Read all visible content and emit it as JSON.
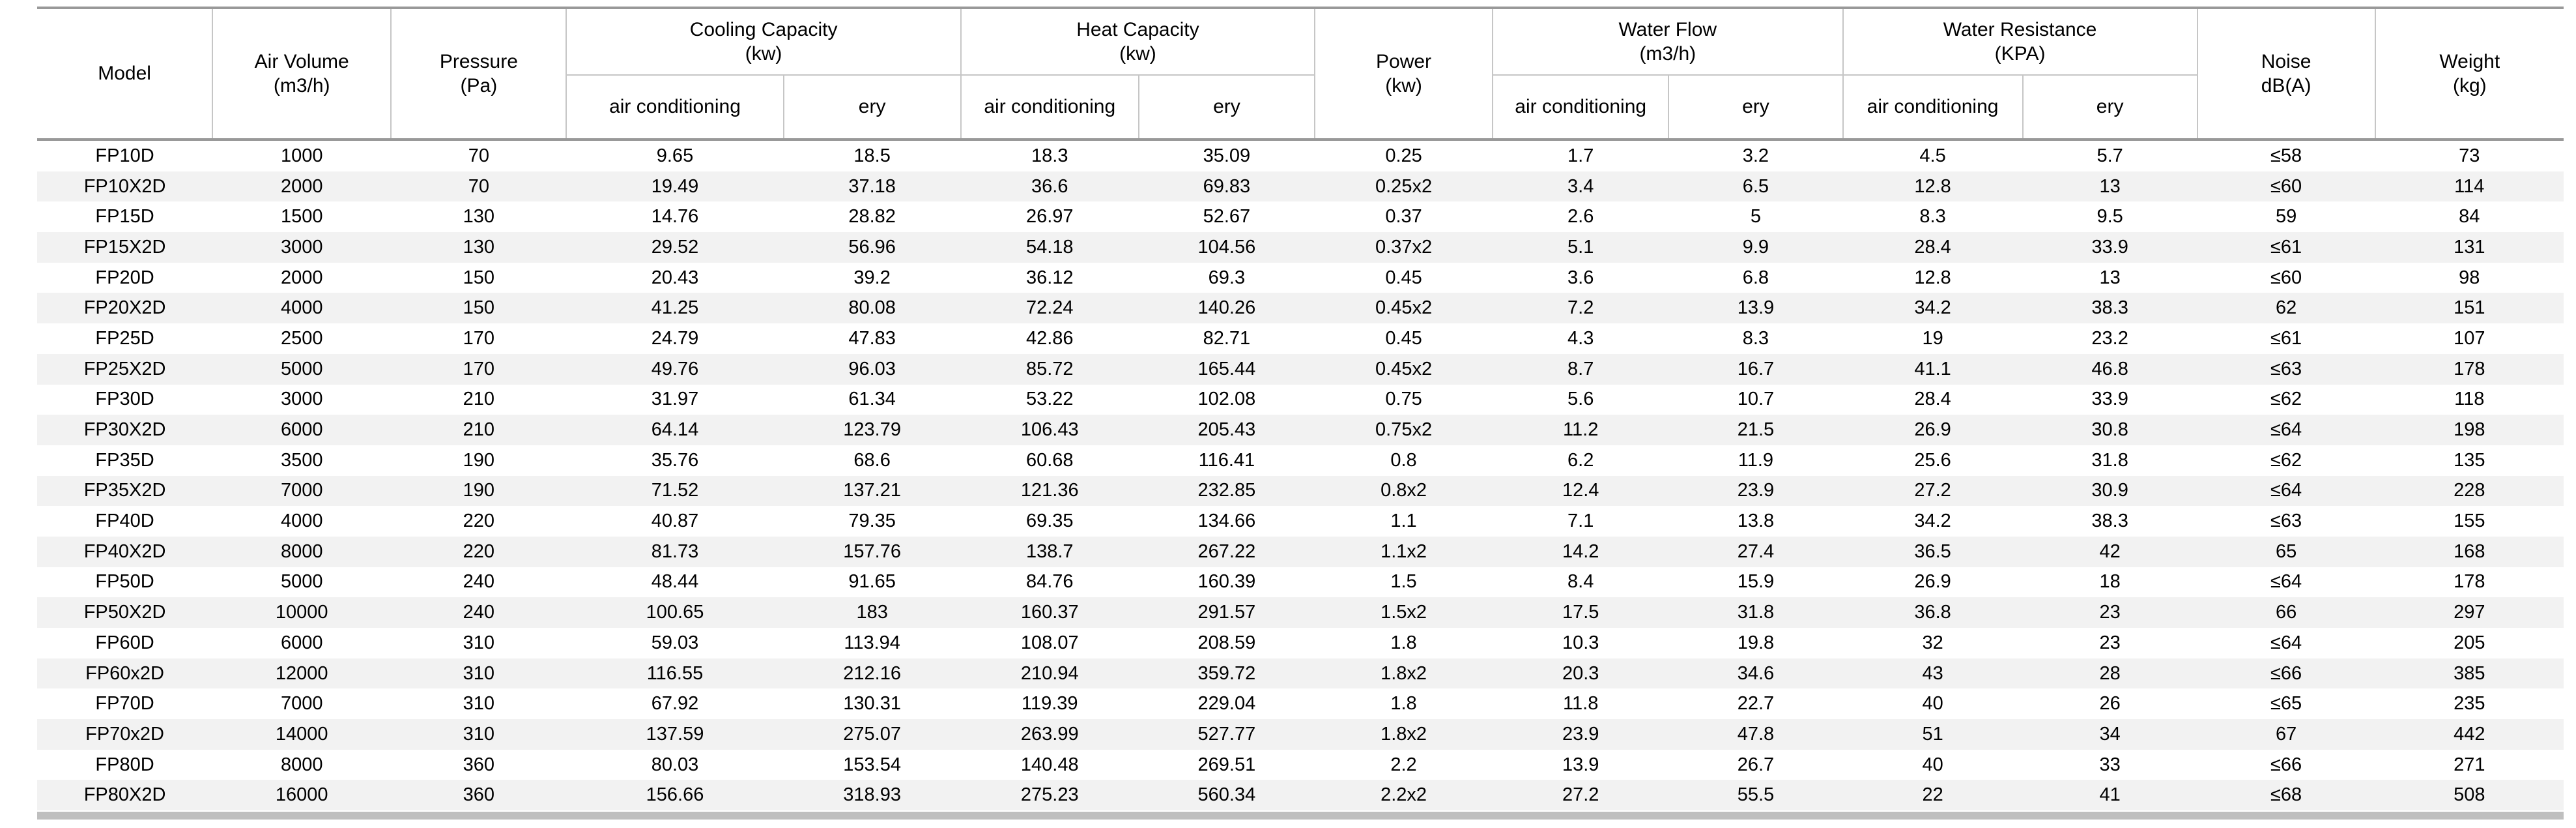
{
  "colors": {
    "row_stripe": "#f2f2f2",
    "rule_dark": "#999999",
    "rule_light": "#c6c6c6",
    "bottom_bar": "#bfbfbf",
    "text": "#000000"
  },
  "table": {
    "headers": {
      "model": "Model",
      "air_volume": "Air Volume\n(m3/h)",
      "pressure": "Pressure\n(Pa)",
      "cooling_capacity": "Cooling Capacity\n(kw)",
      "heat_capacity": "Heat Capacity\n(kw)",
      "power": "Power\n(kw)",
      "water_flow": "Water Flow\n(m3/h)",
      "water_resistance": "Water Resistance\n(KPA)",
      "noise": "Noise\ndB(A)",
      "weight": "Weight\n(kg)",
      "sub_air_conditioning": "air conditioning",
      "sub_ery": "ery"
    },
    "column_keys": [
      "model",
      "air_volume_m3h",
      "pressure_pa",
      "cooling_air_conditioning_kw",
      "cooling_ery_kw",
      "heat_air_conditioning_kw",
      "heat_ery_kw",
      "power_kw",
      "water_flow_air_conditioning_m3h",
      "water_flow_ery_m3h",
      "water_resistance_air_conditioning_kpa",
      "water_resistance_ery_kpa",
      "noise_dba",
      "weight_kg"
    ],
    "rows": [
      [
        "FP10D",
        "1000",
        "70",
        "9.65",
        "18.5",
        "18.3",
        "35.09",
        "0.25",
        "1.7",
        "3.2",
        "4.5",
        "5.7",
        "≤58",
        "73"
      ],
      [
        "FP10X2D",
        "2000",
        "70",
        "19.49",
        "37.18",
        "36.6",
        "69.83",
        "0.25x2",
        "3.4",
        "6.5",
        "12.8",
        "13",
        "≤60",
        "114"
      ],
      [
        "FP15D",
        "1500",
        "130",
        "14.76",
        "28.82",
        "26.97",
        "52.67",
        "0.37",
        "2.6",
        "5",
        "8.3",
        "9.5",
        "59",
        "84"
      ],
      [
        "FP15X2D",
        "3000",
        "130",
        "29.52",
        "56.96",
        "54.18",
        "104.56",
        "0.37x2",
        "5.1",
        "9.9",
        "28.4",
        "33.9",
        "≤61",
        "131"
      ],
      [
        "FP20D",
        "2000",
        "150",
        "20.43",
        "39.2",
        "36.12",
        "69.3",
        "0.45",
        "3.6",
        "6.8",
        "12.8",
        "13",
        "≤60",
        "98"
      ],
      [
        "FP20X2D",
        "4000",
        "150",
        "41.25",
        "80.08",
        "72.24",
        "140.26",
        "0.45x2",
        "7.2",
        "13.9",
        "34.2",
        "38.3",
        "62",
        "151"
      ],
      [
        "FP25D",
        "2500",
        "170",
        "24.79",
        "47.83",
        "42.86",
        "82.71",
        "0.45",
        "4.3",
        "8.3",
        "19",
        "23.2",
        "≤61",
        "107"
      ],
      [
        "FP25X2D",
        "5000",
        "170",
        "49.76",
        "96.03",
        "85.72",
        "165.44",
        "0.45x2",
        "8.7",
        "16.7",
        "41.1",
        "46.8",
        "≤63",
        "178"
      ],
      [
        "FP30D",
        "3000",
        "210",
        "31.97",
        "61.34",
        "53.22",
        "102.08",
        "0.75",
        "5.6",
        "10.7",
        "28.4",
        "33.9",
        "≤62",
        "118"
      ],
      [
        "FP30X2D",
        "6000",
        "210",
        "64.14",
        "123.79",
        "106.43",
        "205.43",
        "0.75x2",
        "11.2",
        "21.5",
        "26.9",
        "30.8",
        "≤64",
        "198"
      ],
      [
        "FP35D",
        "3500",
        "190",
        "35.76",
        "68.6",
        "60.68",
        "116.41",
        "0.8",
        "6.2",
        "11.9",
        "25.6",
        "31.8",
        "≤62",
        "135"
      ],
      [
        "FP35X2D",
        "7000",
        "190",
        "71.52",
        "137.21",
        "121.36",
        "232.85",
        "0.8x2",
        "12.4",
        "23.9",
        "27.2",
        "30.9",
        "≤64",
        "228"
      ],
      [
        "FP40D",
        "4000",
        "220",
        "40.87",
        "79.35",
        "69.35",
        "134.66",
        "1.1",
        "7.1",
        "13.8",
        "34.2",
        "38.3",
        "≤63",
        "155"
      ],
      [
        "FP40X2D",
        "8000",
        "220",
        "81.73",
        "157.76",
        "138.7",
        "267.22",
        "1.1x2",
        "14.2",
        "27.4",
        "36.5",
        "42",
        "65",
        "168"
      ],
      [
        "FP50D",
        "5000",
        "240",
        "48.44",
        "91.65",
        "84.76",
        "160.39",
        "1.5",
        "8.4",
        "15.9",
        "26.9",
        "18",
        "≤64",
        "178"
      ],
      [
        "FP50X2D",
        "10000",
        "240",
        "100.65",
        "183",
        "160.37",
        "291.57",
        "1.5x2",
        "17.5",
        "31.8",
        "36.8",
        "23",
        "66",
        "297"
      ],
      [
        "FP60D",
        "6000",
        "310",
        "59.03",
        "113.94",
        "108.07",
        "208.59",
        "1.8",
        "10.3",
        "19.8",
        "32",
        "23",
        "≤64",
        "205"
      ],
      [
        "FP60x2D",
        "12000",
        "310",
        "116.55",
        "212.16",
        "210.94",
        "359.72",
        "1.8x2",
        "20.3",
        "34.6",
        "43",
        "28",
        "≤66",
        "385"
      ],
      [
        "FP70D",
        "7000",
        "310",
        "67.92",
        "130.31",
        "119.39",
        "229.04",
        "1.8",
        "11.8",
        "22.7",
        "40",
        "26",
        "≤65",
        "235"
      ],
      [
        "FP70x2D",
        "14000",
        "310",
        "137.59",
        "275.07",
        "263.99",
        "527.77",
        "1.8x2",
        "23.9",
        "47.8",
        "51",
        "34",
        "67",
        "442"
      ],
      [
        "FP80D",
        "8000",
        "360",
        "80.03",
        "153.54",
        "140.48",
        "269.51",
        "2.2",
        "13.9",
        "26.7",
        "40",
        "33",
        "≤66",
        "271"
      ],
      [
        "FP80X2D",
        "16000",
        "360",
        "156.66",
        "318.93",
        "275.23",
        "560.34",
        "2.2x2",
        "27.2",
        "55.5",
        "22",
        "41",
        "≤68",
        "508"
      ]
    ]
  }
}
